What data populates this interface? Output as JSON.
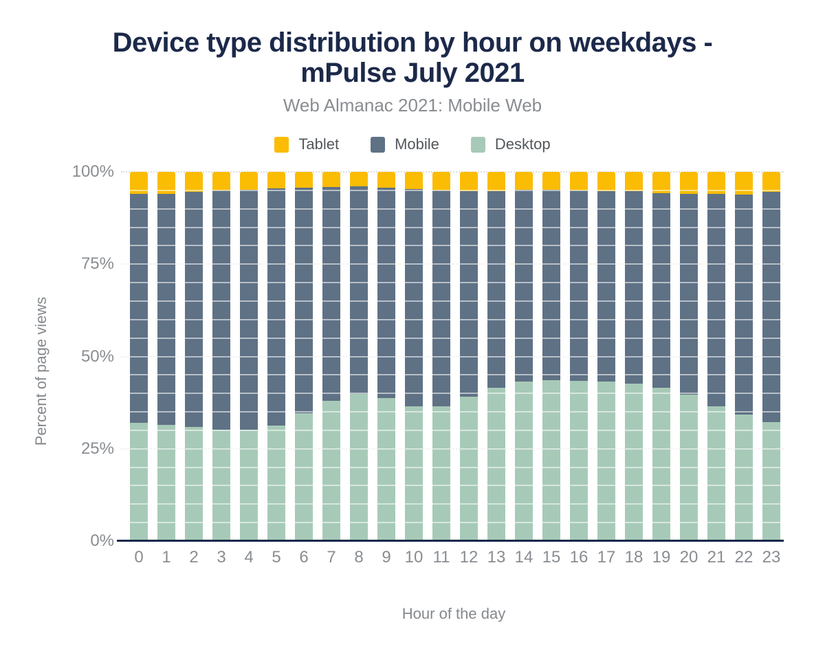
{
  "title": {
    "line1": "Device type distribution by hour on weekdays -",
    "line2": "mPulse July 2021"
  },
  "subtitle": "Web Almanac 2021: Mobile Web",
  "legend": [
    {
      "label": "Tablet",
      "color": "#FBBC04"
    },
    {
      "label": "Mobile",
      "color": "#5F7185"
    },
    {
      "label": "Desktop",
      "color": "#A7CAB8"
    }
  ],
  "axes": {
    "y_title": "Percent of page views",
    "x_title": "Hour of the day",
    "y_ticks": [
      {
        "label": "100%",
        "value": 100
      },
      {
        "label": "75%",
        "value": 75
      },
      {
        "label": "50%",
        "value": 50
      },
      {
        "label": "25%",
        "value": 25
      },
      {
        "label": "0%",
        "value": 0
      }
    ]
  },
  "colors": {
    "title": "#1C294A",
    "baseline": "#15294B",
    "axis_text": "#898D91",
    "tablet": "#FBBC04",
    "mobile": "#5F7185",
    "desktop": "#A7CAB8"
  },
  "chart_data": {
    "type": "bar",
    "stacked": true,
    "unit": "%",
    "title": "Device type distribution by hour on weekdays - mPulse July 2021",
    "subtitle": "Web Almanac 2021: Mobile Web",
    "xlabel": "Hour of the day",
    "ylabel": "Percent of page views",
    "ylim": [
      0,
      100
    ],
    "grid": "dotted major every 25%, faint minor every 5%",
    "legend_position": "top",
    "categories": [
      0,
      1,
      2,
      3,
      4,
      5,
      6,
      7,
      8,
      9,
      10,
      11,
      12,
      13,
      14,
      15,
      16,
      17,
      18,
      19,
      20,
      21,
      22,
      23
    ],
    "series": [
      {
        "name": "Desktop",
        "color": "#A7CAB8",
        "values": [
          32.0,
          31.4,
          30.9,
          30.2,
          30.1,
          31.3,
          34.7,
          38.0,
          39.9,
          38.8,
          36.5,
          36.5,
          39.2,
          41.6,
          43.2,
          43.5,
          43.4,
          43.2,
          42.7,
          41.6,
          39.6,
          36.5,
          34.3,
          32.2
        ]
      },
      {
        "name": "Mobile",
        "color": "#5F7185",
        "values": [
          62.1,
          62.7,
          63.7,
          64.7,
          65.1,
          64.2,
          61.0,
          58.0,
          56.2,
          56.9,
          58.8,
          58.4,
          55.5,
          53.1,
          51.9,
          51.7,
          51.5,
          51.6,
          52.0,
          52.6,
          54.4,
          57.5,
          59.5,
          62.4
        ]
      },
      {
        "name": "Tablet",
        "color": "#FBBC04",
        "values": [
          5.9,
          5.9,
          5.4,
          5.1,
          4.8,
          4.5,
          4.3,
          4.0,
          3.9,
          4.3,
          4.7,
          5.1,
          5.3,
          5.3,
          4.9,
          4.8,
          5.1,
          5.2,
          5.3,
          5.8,
          6.0,
          6.0,
          6.2,
          5.4
        ]
      }
    ]
  }
}
